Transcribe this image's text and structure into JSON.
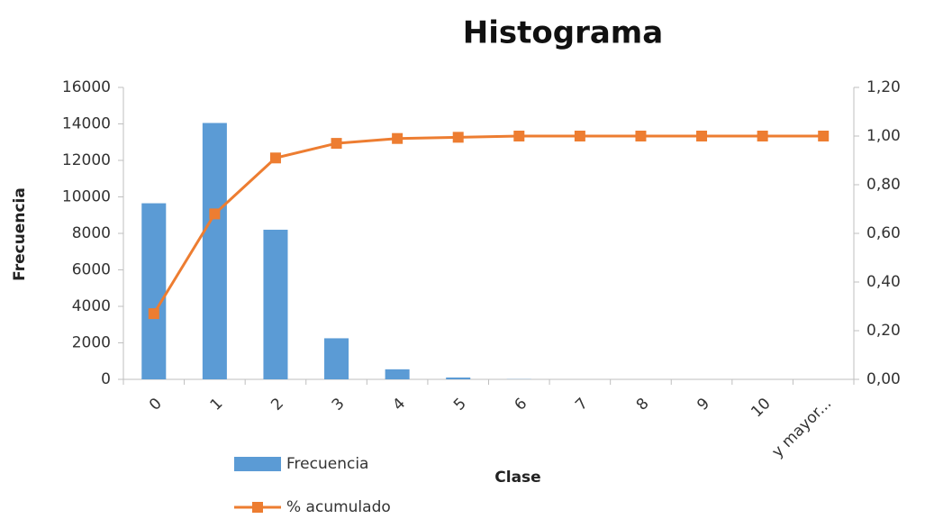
{
  "chart_data": {
    "type": "bar",
    "title": "Histograma",
    "x_label": "Clase",
    "y_label": "Frecuencia",
    "categories": [
      "0",
      "1",
      "2",
      "3",
      "4",
      "5",
      "6",
      "7",
      "8",
      "9",
      "10",
      "y mayor..."
    ],
    "series": [
      {
        "name": "Frecuencia",
        "color": "#5b9bd5",
        "values": [
          9650,
          14050,
          8200,
          2250,
          550,
          100,
          10,
          0,
          0,
          0,
          0,
          0
        ]
      },
      {
        "name": "% acumulado",
        "type": "line",
        "axis": "y2",
        "color": "#ed7d31",
        "values": [
          0.27,
          0.68,
          0.91,
          0.97,
          0.99,
          0.995,
          1.0,
          1.0,
          1.0,
          1.0,
          1.0,
          1.0
        ]
      }
    ],
    "ylim": [
      0,
      16000
    ],
    "yticks": [
      0,
      2000,
      4000,
      6000,
      8000,
      10000,
      12000,
      14000,
      16000
    ],
    "y2lim": [
      0,
      1.2
    ],
    "y2ticks": [
      {
        "value": 0,
        "label": "0,00"
      },
      {
        "value": 0.2,
        "label": "0,20"
      },
      {
        "value": 0.4,
        "label": "0,40"
      },
      {
        "value": 0.6,
        "label": "0,60"
      },
      {
        "value": 0.8,
        "label": "0,80"
      },
      {
        "value": 1.0,
        "label": "1,00"
      },
      {
        "value": 1.2,
        "label": "1,20"
      }
    ],
    "grid": false,
    "legend": "bottom-left"
  }
}
